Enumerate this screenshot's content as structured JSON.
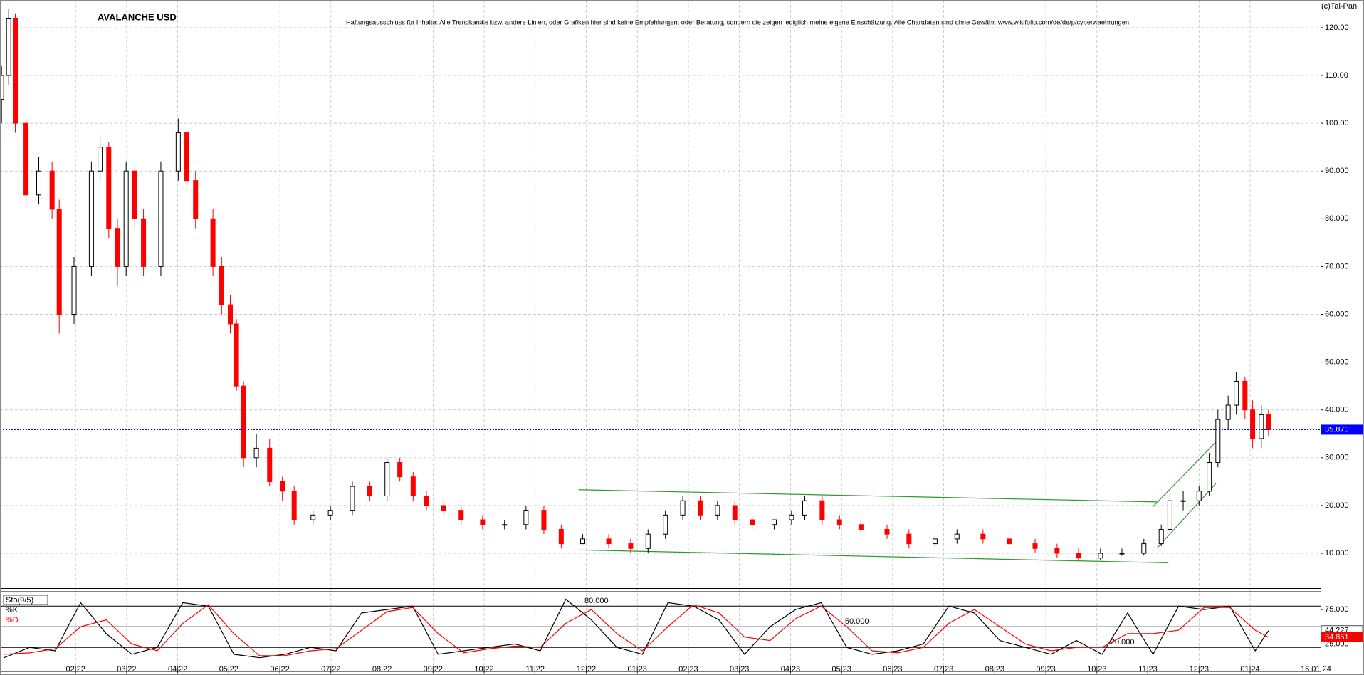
{
  "chart_data": [
    {
      "type": "candlestick",
      "title": "AVALANCHE USD",
      "subtitle": "Haftungsausschluss für Inhalte: Alle Trendkanäle bzw. andere Linien, oder Grafiken hier sind keine Empfehlungen, oder Beratung, sondern die zeigen lediglich meine eigene Einschätzung. Alle Chartdaten sind ohne Gewähr.  www.wikifolio.com/de/de/p/cyberwaehrungen",
      "source": "(c)Tai-Pan",
      "date_label": "16.01.24",
      "x": [
        -1.45,
        -1.31,
        -1.18,
        -0.97,
        -0.72,
        -0.46,
        -0.32,
        -0.03,
        0.31,
        0.48,
        0.65,
        0.82,
        0.99,
        1.16,
        1.33,
        1.67,
        2.01,
        2.18,
        2.35,
        2.69,
        2.86,
        3.03,
        3.15,
        3.29,
        3.54,
        3.8,
        4.05,
        4.28,
        4.65,
        4.99,
        5.42,
        5.76,
        6.1,
        6.35,
        6.61,
        6.87,
        7.21,
        7.55,
        7.97,
        8.4,
        8.82,
        9.17,
        9.51,
        9.93,
        10.44,
        10.87,
        11.21,
        11.55,
        11.89,
        12.23,
        12.57,
        12.91,
        13.25,
        13.68,
        14.02,
        14.28,
        14.62,
        14.96,
        15.38,
        15.89,
        16.32,
        16.83,
        17.26,
        17.77,
        18.28,
        18.79,
        19.22,
        19.64,
        20.07,
        20.49,
        20.92,
        21.26,
        21.43,
        21.69,
        22.0,
        22.2,
        22.37,
        22.57,
        22.73,
        22.9,
        23.05,
        23.22,
        23.36
      ],
      "open": [
        105,
        110,
        122,
        100,
        85,
        90,
        82,
        60,
        70,
        90,
        95,
        78,
        70,
        90,
        80,
        70,
        90,
        98,
        88,
        80,
        70,
        62,
        58,
        45,
        30,
        32,
        25,
        23,
        17,
        18,
        19,
        24,
        22,
        29,
        26,
        22,
        20,
        19,
        17,
        16,
        16,
        19,
        15,
        12,
        13,
        12,
        11,
        14,
        18,
        21,
        18,
        20,
        17,
        16,
        17,
        18,
        21,
        17,
        16,
        15,
        14,
        12,
        13,
        14,
        13,
        12,
        11,
        10,
        9,
        10,
        10,
        12,
        15,
        21,
        21,
        23,
        29,
        38,
        41,
        46,
        40,
        34,
        39
      ],
      "high": [
        112,
        124,
        123,
        101,
        93,
        92,
        84,
        72,
        92,
        97,
        96,
        80,
        92,
        91,
        82,
        92,
        101,
        99,
        90,
        82,
        72,
        64,
        59,
        46,
        35,
        34,
        26,
        24,
        19,
        20,
        25,
        25,
        30,
        30,
        27,
        23,
        21,
        20,
        18,
        17,
        20,
        20,
        16,
        14,
        14,
        13,
        15,
        19,
        22,
        22,
        21,
        21,
        18,
        17,
        19,
        22,
        22,
        18,
        17,
        16,
        15,
        14,
        15,
        15,
        14,
        13,
        12,
        11,
        11,
        11,
        13,
        16,
        22,
        23,
        24,
        31,
        40,
        43,
        48,
        47,
        42,
        41,
        40
      ],
      "low": [
        100,
        108,
        98,
        82,
        83,
        80,
        56,
        58,
        68,
        88,
        76,
        66,
        68,
        78,
        68,
        68,
        88,
        86,
        78,
        68,
        60,
        56,
        44,
        28,
        28,
        24,
        21,
        16,
        16,
        17,
        18,
        21,
        21,
        25,
        21,
        19,
        18,
        16,
        15,
        15,
        15,
        14,
        11,
        12,
        11,
        10,
        10,
        13,
        17,
        17,
        17,
        16,
        15,
        15,
        16,
        17,
        16,
        15,
        14,
        13,
        11,
        11,
        12,
        12,
        11,
        10,
        9,
        8.5,
        8.5,
        9.5,
        9.5,
        11.5,
        14.5,
        19,
        20,
        22,
        28,
        36,
        39,
        38,
        32,
        32,
        34.5
      ],
      "close": [
        110,
        122,
        100,
        85,
        90,
        82,
        60,
        70,
        90,
        95,
        78,
        70,
        90,
        80,
        70,
        90,
        98,
        88,
        80,
        70,
        62,
        58,
        45,
        30,
        32,
        25,
        23,
        17,
        18,
        19,
        24,
        22,
        29,
        26,
        22,
        20,
        19,
        17,
        16,
        16,
        19,
        15,
        12,
        13,
        12,
        11,
        14,
        18,
        21,
        18,
        20,
        17,
        16,
        17,
        18,
        21,
        17,
        16,
        15,
        14,
        12,
        13,
        14,
        13,
        12,
        11,
        10,
        9,
        10,
        10,
        12,
        15,
        21,
        21,
        23,
        29,
        38,
        41,
        46,
        40,
        34,
        39,
        35.87
      ],
      "up_color": "#000000",
      "down_color": "#ff0000",
      "last_price": {
        "value": 35.87,
        "label": "35.870"
      },
      "last_price_color": "#0000ff",
      "trendlines": [
        [
          9.85,
          23.3,
          21.18,
          20.75
        ],
        [
          9.85,
          10.7,
          21.4,
          8.0
        ],
        [
          21.09,
          19.65,
          22.33,
          33.3
        ],
        [
          21.18,
          11.1,
          22.33,
          24.6
        ]
      ],
      "trendline_color": "#2e9a2e",
      "xlim": [
        -1.48,
        24.38
      ],
      "ylim": [
        2.7,
        125.8
      ],
      "xticks": [
        {
          "value": 0,
          "label": "02|22"
        },
        {
          "value": 1,
          "label": "03|22"
        },
        {
          "value": 2,
          "label": "04|22"
        },
        {
          "value": 3,
          "label": "05|22"
        },
        {
          "value": 4,
          "label": "06|22"
        },
        {
          "value": 5,
          "label": "07|22"
        },
        {
          "value": 6,
          "label": "08|22"
        },
        {
          "value": 7,
          "label": "09|22"
        },
        {
          "value": 8,
          "label": "10|22"
        },
        {
          "value": 9,
          "label": "11|22"
        },
        {
          "value": 10,
          "label": "12|22"
        },
        {
          "value": 11,
          "label": "01|23"
        },
        {
          "value": 12,
          "label": "02|23"
        },
        {
          "value": 13,
          "label": "03|23"
        },
        {
          "value": 14,
          "label": "04|23"
        },
        {
          "value": 15,
          "label": "05|23"
        },
        {
          "value": 16,
          "label": "06|23"
        },
        {
          "value": 17,
          "label": "07|23"
        },
        {
          "value": 18,
          "label": "08|23"
        },
        {
          "value": 19,
          "label": "09|23"
        },
        {
          "value": 20,
          "label": "10|23"
        },
        {
          "value": 21,
          "label": "11|23"
        },
        {
          "value": 22,
          "label": "12|23"
        },
        {
          "value": 23,
          "label": "01|24"
        }
      ],
      "yticks": [
        {
          "value": 10,
          "label": "10.000"
        },
        {
          "value": 20,
          "label": "20.000"
        },
        {
          "value": 30,
          "label": "30.000"
        },
        {
          "value": 40,
          "label": "40.000"
        },
        {
          "value": 50,
          "label": "50.000"
        },
        {
          "value": 60,
          "label": "60.000"
        },
        {
          "value": 70,
          "label": "70.000"
        },
        {
          "value": 80,
          "label": "80.000"
        },
        {
          "value": 90,
          "label": "90.000"
        },
        {
          "value": 100,
          "label": "100.00"
        },
        {
          "value": 110,
          "label": "110.00"
        },
        {
          "value": 120,
          "label": "120.00"
        }
      ],
      "grid": true
    },
    {
      "type": "line",
      "title": "Sto(9/5)",
      "x": [
        -1.4,
        -0.9,
        -0.4,
        0.1,
        0.6,
        1.1,
        1.6,
        2.1,
        2.6,
        3.1,
        3.6,
        4.1,
        4.6,
        5.1,
        5.6,
        6.1,
        6.6,
        7.1,
        7.6,
        8.1,
        8.6,
        9.1,
        9.6,
        10.1,
        10.6,
        11.1,
        11.6,
        12.1,
        12.6,
        13.1,
        13.6,
        14.1,
        14.6,
        15.1,
        15.6,
        16.1,
        16.6,
        17.1,
        17.6,
        18.1,
        18.6,
        19.1,
        19.6,
        20.1,
        20.6,
        21.1,
        21.6,
        22.1,
        22.6,
        23.1,
        23.36
      ],
      "series": [
        {
          "name": "%K",
          "color": "#000000",
          "last_label": "44.227",
          "values": [
            5,
            20,
            15,
            85,
            40,
            10,
            20,
            85,
            80,
            10,
            5,
            10,
            20,
            15,
            70,
            75,
            80,
            10,
            15,
            20,
            25,
            15,
            90,
            60,
            20,
            10,
            85,
            80,
            60,
            10,
            50,
            75,
            85,
            20,
            10,
            15,
            25,
            80,
            70,
            30,
            20,
            10,
            30,
            10,
            70,
            10,
            80,
            75,
            80,
            15,
            44.227
          ]
        },
        {
          "name": "%D",
          "color": "#ff0000",
          "last_label": "34.851",
          "values": [
            10,
            12,
            18,
            50,
            60,
            25,
            15,
            55,
            82,
            40,
            8,
            8,
            15,
            18,
            45,
            72,
            78,
            40,
            12,
            18,
            22,
            20,
            55,
            75,
            40,
            15,
            50,
            82,
            70,
            35,
            30,
            62,
            80,
            50,
            15,
            12,
            20,
            55,
            75,
            50,
            25,
            15,
            20,
            20,
            40,
            40,
            45,
            78,
            78,
            45,
            34.851
          ]
        }
      ],
      "levels": [
        {
          "value": 80,
          "label": "80.000",
          "at": 10.2
        },
        {
          "value": 50,
          "label": "50.000",
          "at": 15.3
        },
        {
          "value": 20,
          "label": "20.000",
          "at": 20.5
        }
      ],
      "xlim": [
        -1.48,
        24.38
      ],
      "ylim": [
        -15,
        101
      ],
      "yticks": [
        {
          "value": 75,
          "label": "75.000"
        },
        {
          "value": 25,
          "label": "25.000"
        }
      ],
      "grid": true
    }
  ]
}
